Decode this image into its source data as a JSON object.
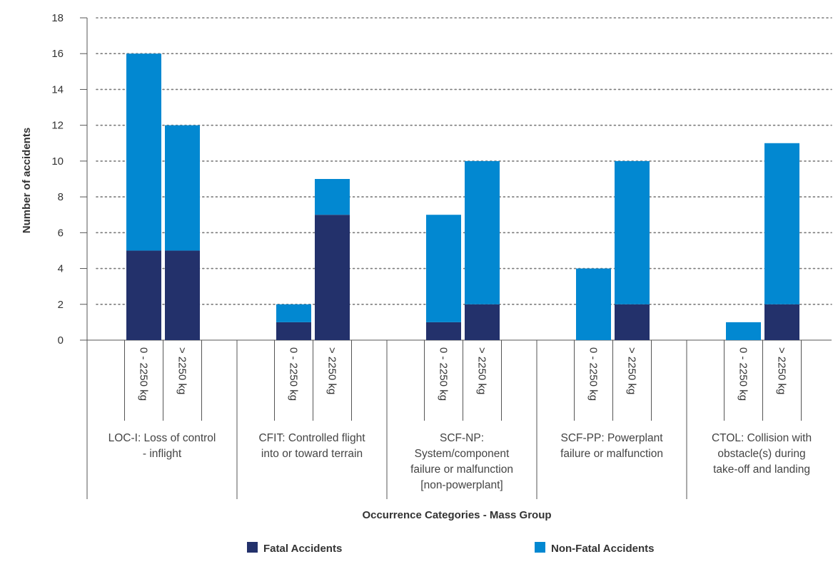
{
  "chart_data": {
    "type": "bar",
    "stacked": true,
    "xlabel": "Occurrence Categories - Mass Group",
    "ylabel": "Number of accidents",
    "ylim": [
      0,
      18
    ],
    "yticks": [
      0,
      2,
      4,
      6,
      8,
      10,
      12,
      14,
      16,
      18
    ],
    "grid": "horizontal-dotted",
    "groups": [
      {
        "label_lines": [
          "LOC-I: Loss of control",
          "- inflight"
        ],
        "bars": [
          {
            "mass": "0 - 2250 kg",
            "fatal": 5,
            "nonfatal": 11
          },
          {
            "mass": "> 2250 kg",
            "fatal": 5,
            "nonfatal": 7
          }
        ]
      },
      {
        "label_lines": [
          "CFIT: Controlled flight",
          "into or toward terrain"
        ],
        "bars": [
          {
            "mass": "0 - 2250 kg",
            "fatal": 1,
            "nonfatal": 1
          },
          {
            "mass": "> 2250 kg",
            "fatal": 7,
            "nonfatal": 2
          }
        ]
      },
      {
        "label_lines": [
          "SCF-NP:",
          "System/component",
          "failure or malfunction",
          "[non-powerplant]"
        ],
        "bars": [
          {
            "mass": "0 - 2250 kg",
            "fatal": 1,
            "nonfatal": 6
          },
          {
            "mass": "> 2250 kg",
            "fatal": 2,
            "nonfatal": 8
          }
        ]
      },
      {
        "label_lines": [
          "SCF-PP: Powerplant",
          "failure or malfunction"
        ],
        "bars": [
          {
            "mass": "0 - 2250 kg",
            "fatal": 0,
            "nonfatal": 4
          },
          {
            "mass": "> 2250 kg",
            "fatal": 2,
            "nonfatal": 8
          }
        ]
      },
      {
        "label_lines": [
          "CTOL: Collision with",
          "obstacle(s) during",
          "take-off and landing"
        ],
        "bars": [
          {
            "mass": "0 - 2250 kg",
            "fatal": 0,
            "nonfatal": 1
          },
          {
            "mass": "> 2250 kg",
            "fatal": 2,
            "nonfatal": 9
          }
        ]
      }
    ],
    "series": [
      {
        "name": "Fatal Accidents",
        "key": "fatal",
        "color": "#23316b"
      },
      {
        "name": "Non-Fatal Accidents",
        "key": "nonfatal",
        "color": "#0288d1"
      }
    ],
    "legend_position": "bottom"
  }
}
